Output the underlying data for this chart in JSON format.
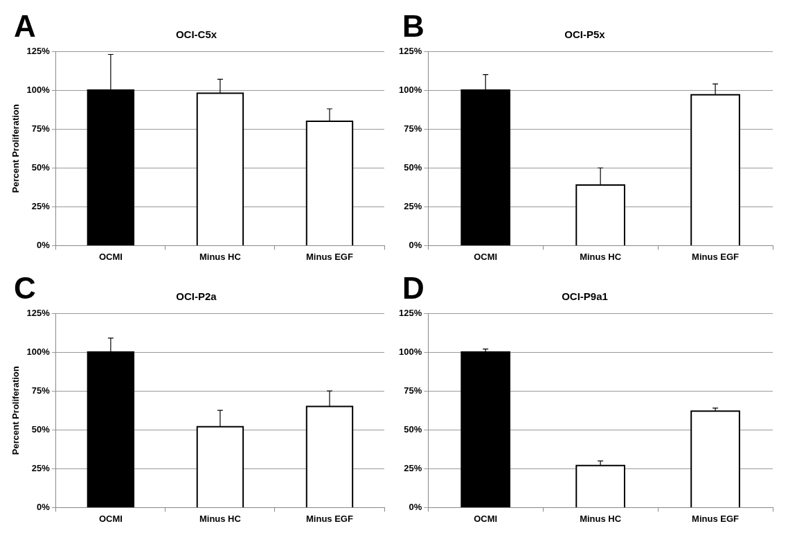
{
  "chart_data": [
    {
      "type": "bar",
      "title": "OCI-C5x",
      "ylabel": "Percent Proliferation",
      "annotations": [
        "A"
      ],
      "categories": [
        "OCMI",
        "Minus HC",
        "Minus EGF"
      ],
      "values": [
        100,
        98,
        80
      ],
      "colors": [
        "#000000",
        "#ffffff",
        "#ffffff"
      ],
      "errors": [
        [
          100,
          123
        ],
        [
          98,
          107
        ],
        [
          80,
          88
        ]
      ],
      "ylim": [
        0,
        125
      ],
      "yticks": [
        {
          "value": 0,
          "label": "0%"
        },
        {
          "value": 25,
          "label": "25%"
        },
        {
          "value": 50,
          "label": "50%"
        },
        {
          "value": 75,
          "label": "75%"
        },
        {
          "value": 100,
          "label": "100%"
        },
        {
          "value": 125,
          "label": "125%"
        }
      ],
      "grid": "y",
      "legend": false
    },
    {
      "type": "bar",
      "title": "OCI-P5x",
      "annotations": [
        "B"
      ],
      "categories": [
        "OCMI",
        "Minus HC",
        "Minus EGF"
      ],
      "values": [
        100,
        39,
        97
      ],
      "colors": [
        "#000000",
        "#ffffff",
        "#ffffff"
      ],
      "errors": [
        [
          100,
          110
        ],
        [
          39,
          50
        ],
        [
          97,
          104
        ]
      ],
      "ylim": [
        0,
        125
      ],
      "yticks": [
        {
          "value": 0,
          "label": "0%"
        },
        {
          "value": 25,
          "label": "25%"
        },
        {
          "value": 50,
          "label": "50%"
        },
        {
          "value": 75,
          "label": "75%"
        },
        {
          "value": 100,
          "label": "100%"
        },
        {
          "value": 125,
          "label": "125%"
        }
      ],
      "grid": "y",
      "legend": false
    },
    {
      "type": "bar",
      "title": "OCI-P2a",
      "ylabel": "Percent Proliferation",
      "annotations": [
        "C"
      ],
      "categories": [
        "OCMI",
        "Minus HC",
        "Minus EGF"
      ],
      "values": [
        100,
        52,
        65
      ],
      "colors": [
        "#000000",
        "#ffffff",
        "#ffffff"
      ],
      "errors": [
        [
          100,
          109
        ],
        [
          52,
          62.5
        ],
        [
          65,
          75
        ]
      ],
      "ylim": [
        0,
        125
      ],
      "yticks": [
        {
          "value": 0,
          "label": "0%"
        },
        {
          "value": 25,
          "label": "25%"
        },
        {
          "value": 50,
          "label": "50%"
        },
        {
          "value": 75,
          "label": "75%"
        },
        {
          "value": 100,
          "label": "100%"
        },
        {
          "value": 125,
          "label": "125%"
        }
      ],
      "grid": "y",
      "legend": false
    },
    {
      "type": "bar",
      "title": "OCI-P9a1",
      "annotations": [
        "D"
      ],
      "categories": [
        "OCMI",
        "Minus HC",
        "Minus EGF"
      ],
      "values": [
        100,
        27,
        62
      ],
      "colors": [
        "#000000",
        "#ffffff",
        "#ffffff"
      ],
      "errors": [
        [
          100,
          102
        ],
        [
          27,
          30
        ],
        [
          62,
          64
        ]
      ],
      "ylim": [
        0,
        125
      ],
      "yticks": [
        {
          "value": 0,
          "label": "0%"
        },
        {
          "value": 25,
          "label": "25%"
        },
        {
          "value": 50,
          "label": "50%"
        },
        {
          "value": 75,
          "label": "75%"
        },
        {
          "value": 100,
          "label": "100%"
        },
        {
          "value": 125,
          "label": "125%"
        }
      ],
      "grid": "y",
      "legend": false
    }
  ]
}
